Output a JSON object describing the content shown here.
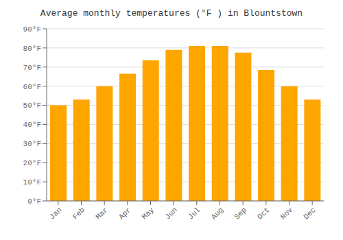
{
  "chart_data": {
    "type": "bar",
    "title": "Average monthly temperatures (°F ) in Blountstown",
    "categories": [
      "Jan",
      "Feb",
      "Mar",
      "Apr",
      "May",
      "Jun",
      "Jul",
      "Aug",
      "Sep",
      "Oct",
      "Nov",
      "Dec"
    ],
    "values": [
      50,
      53,
      60,
      66.5,
      73.5,
      79,
      81,
      81,
      77.5,
      68.5,
      60,
      53
    ],
    "color": "#FFA500",
    "ylim": [
      0,
      90
    ],
    "yticks": [
      {
        "value": 0,
        "label": "0°F"
      },
      {
        "value": 10,
        "label": "10°F"
      },
      {
        "value": 20,
        "label": "20°F"
      },
      {
        "value": 30,
        "label": "30°F"
      },
      {
        "value": 40,
        "label": "40°F"
      },
      {
        "value": 50,
        "label": "50°F"
      },
      {
        "value": 60,
        "label": "60°F"
      },
      {
        "value": 70,
        "label": "70°F"
      },
      {
        "value": 80,
        "label": "80°F"
      },
      {
        "value": 90,
        "label": "90°F"
      }
    ],
    "grid": true
  }
}
